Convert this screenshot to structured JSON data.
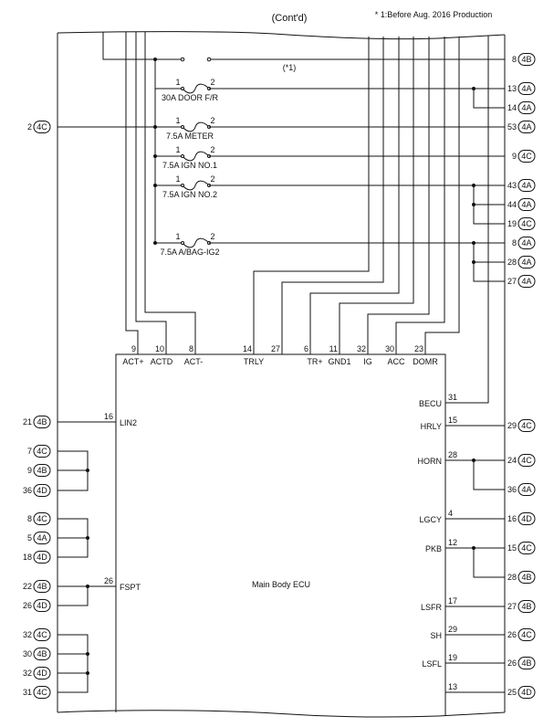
{
  "header": {
    "title": "(Cont'd)",
    "note": "* 1:Before Aug. 2016 Production"
  },
  "switch_label": "(*1)",
  "fuses": [
    {
      "pin1": "1",
      "pin2": "2",
      "label": "30A DOOR F/R"
    },
    {
      "pin1": "1",
      "pin2": "2",
      "label": "7.5A METER"
    },
    {
      "pin1": "1",
      "pin2": "2",
      "label": "7.5A IGN NO.1"
    },
    {
      "pin1": "1",
      "pin2": "2",
      "label": "7.5A IGN NO.2"
    },
    {
      "pin1": "1",
      "pin2": "2",
      "label": "7.5A A/BAG-IG2"
    }
  ],
  "left_top_connector": {
    "pin": "2",
    "conn": "4C"
  },
  "right_top_connectors": [
    {
      "pin": "8",
      "conn": "4B"
    },
    {
      "pin": "13",
      "conn": "4A"
    },
    {
      "pin": "14",
      "conn": "4A"
    },
    {
      "pin": "53",
      "conn": "4A"
    },
    {
      "pin": "9",
      "conn": "4C"
    },
    {
      "pin": "43",
      "conn": "4A"
    },
    {
      "pin": "44",
      "conn": "4A"
    },
    {
      "pin": "19",
      "conn": "4C"
    },
    {
      "pin": "8",
      "conn": "4A"
    },
    {
      "pin": "28",
      "conn": "4A"
    },
    {
      "pin": "27",
      "conn": "4A"
    }
  ],
  "ecu": {
    "name": "Main Body ECU",
    "top_pins": [
      {
        "num": "9",
        "name": "ACT+"
      },
      {
        "num": "10",
        "name": "ACTD"
      },
      {
        "num": "8",
        "name": "ACT-"
      },
      {
        "num": "14",
        "name": "TRLY"
      },
      {
        "num": "27",
        "name": ""
      },
      {
        "num": "6",
        "name": "TR+"
      },
      {
        "num": "11",
        "name": "GND1"
      },
      {
        "num": "32",
        "name": "IG"
      },
      {
        "num": "30",
        "name": "ACC"
      },
      {
        "num": "23",
        "name": "DOMR"
      }
    ],
    "left_pins": [
      {
        "num": "16",
        "name": "LIN2"
      },
      {
        "num": "26",
        "name": "FSPT"
      }
    ],
    "right_pins": [
      {
        "num": "31",
        "name": "BECU"
      },
      {
        "num": "15",
        "name": "HRLY"
      },
      {
        "num": "28",
        "name": "HORN"
      },
      {
        "num": "4",
        "name": "LGCY"
      },
      {
        "num": "12",
        "name": "PKB"
      },
      {
        "num": "17",
        "name": "LSFR"
      },
      {
        "num": "29",
        "name": "SH"
      },
      {
        "num": "19",
        "name": "LSFL"
      },
      {
        "num": "13",
        "name": ""
      }
    ]
  },
  "left_connectors": [
    {
      "pin": "21",
      "conn": "4B"
    },
    {
      "pin": "7",
      "conn": "4C"
    },
    {
      "pin": "9",
      "conn": "4B"
    },
    {
      "pin": "36",
      "conn": "4D"
    },
    {
      "pin": "8",
      "conn": "4C"
    },
    {
      "pin": "5",
      "conn": "4A"
    },
    {
      "pin": "18",
      "conn": "4D"
    },
    {
      "pin": "22",
      "conn": "4B"
    },
    {
      "pin": "26",
      "conn": "4D"
    },
    {
      "pin": "32",
      "conn": "4C"
    },
    {
      "pin": "30",
      "conn": "4B"
    },
    {
      "pin": "32",
      "conn": "4D"
    },
    {
      "pin": "31",
      "conn": "4C"
    }
  ],
  "right_bottom_connectors": [
    {
      "pin": "29",
      "conn": "4C"
    },
    {
      "pin": "24",
      "conn": "4C"
    },
    {
      "pin": "36",
      "conn": "4A"
    },
    {
      "pin": "16",
      "conn": "4D"
    },
    {
      "pin": "15",
      "conn": "4C"
    },
    {
      "pin": "28",
      "conn": "4B"
    },
    {
      "pin": "27",
      "conn": "4B"
    },
    {
      "pin": "26",
      "conn": "4C"
    },
    {
      "pin": "26",
      "conn": "4B"
    },
    {
      "pin": "25",
      "conn": "4D"
    }
  ]
}
